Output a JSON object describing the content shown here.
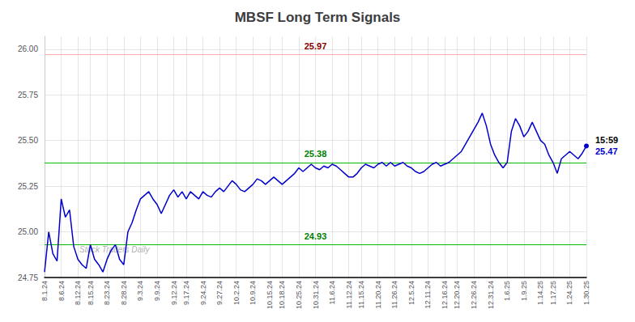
{
  "chart_data": {
    "type": "line",
    "title": "MBSF Long Term Signals",
    "color": "#0000cc",
    "grid": true,
    "ylim": [
      24.75,
      26.07
    ],
    "yticks": [
      24.75,
      {
        "value": 25.0,
        "label": "25.00"
      },
      25.25,
      {
        "value": 25.5,
        "label": "25.50"
      },
      25.75,
      {
        "value": 26.0,
        "label": "26.00"
      }
    ],
    "hlines": [
      {
        "y": 25.97,
        "label": "25.97",
        "color": "#ffaaaa",
        "text_color": "darkred"
      },
      {
        "y": 25.38,
        "label": "25.38",
        "color": "#00bb00",
        "text_color": "green"
      },
      {
        "y": 24.93,
        "label": "24.93",
        "color": "#00bb00",
        "text_color": "green"
      }
    ],
    "end_time": "15:59",
    "end_price": "25.47",
    "watermark": "Stock Traders Daily",
    "categories": [
      "8.1.24",
      null,
      null,
      null,
      "8.6.24",
      null,
      null,
      null,
      "8.12.24",
      null,
      null,
      "8.15.24",
      null,
      null,
      null,
      "8.23.24",
      null,
      null,
      null,
      "8.28.24",
      null,
      null,
      null,
      "9.3.24",
      null,
      null,
      null,
      "9.9.24",
      null,
      null,
      null,
      "9.12.24",
      null,
      null,
      "9.17.24",
      null,
      null,
      null,
      "9.24.24",
      null,
      null,
      null,
      "9.27.24",
      null,
      null,
      null,
      "10.2.24",
      null,
      null,
      null,
      "10.9.24",
      null,
      null,
      null,
      "10.15.24",
      null,
      null,
      "10.18.24",
      null,
      null,
      null,
      "10.25.24",
      null,
      null,
      null,
      "10.31.24",
      null,
      null,
      null,
      "11.6.24",
      null,
      null,
      null,
      "11.12.24",
      null,
      null,
      "11.15.24",
      null,
      null,
      null,
      "11.20.24",
      null,
      null,
      null,
      "11.26.24",
      null,
      null,
      null,
      "12.5.24",
      null,
      null,
      null,
      "12.11.24",
      null,
      null,
      null,
      "12.16.24",
      null,
      null,
      "12.20.24",
      null,
      null,
      null,
      "12.26.24",
      null,
      null,
      null,
      "12.31.24",
      null,
      null,
      null,
      "1.6.25",
      null,
      null,
      null,
      "1.9.25",
      null,
      null,
      null,
      "1.14.25",
      null,
      null,
      "1.17.25",
      null,
      null,
      null,
      "1.24.25",
      null,
      null,
      null,
      "1.30.25"
    ],
    "values": [
      24.78,
      25.0,
      24.88,
      24.84,
      25.18,
      25.08,
      25.12,
      24.92,
      24.85,
      24.82,
      24.8,
      24.93,
      24.85,
      24.82,
      24.78,
      24.85,
      24.9,
      24.93,
      24.85,
      24.82,
      25.0,
      25.05,
      25.12,
      25.18,
      25.2,
      25.22,
      25.18,
      25.15,
      25.1,
      25.15,
      25.2,
      25.23,
      25.19,
      25.22,
      25.18,
      25.22,
      25.2,
      25.18,
      25.22,
      25.2,
      25.19,
      25.22,
      25.24,
      25.22,
      25.25,
      25.28,
      25.26,
      25.23,
      25.22,
      25.24,
      25.26,
      25.29,
      25.28,
      25.26,
      25.28,
      25.3,
      25.28,
      25.26,
      25.28,
      25.3,
      25.32,
      25.35,
      25.33,
      25.35,
      25.37,
      25.35,
      25.34,
      25.36,
      25.35,
      25.37,
      25.36,
      25.34,
      25.32,
      25.3,
      25.3,
      25.32,
      25.35,
      25.37,
      25.36,
      25.35,
      25.37,
      25.38,
      25.36,
      25.38,
      25.36,
      25.37,
      25.38,
      25.36,
      25.35,
      25.33,
      25.32,
      25.33,
      25.35,
      25.37,
      25.38,
      25.36,
      25.37,
      25.38,
      25.4,
      25.42,
      25.44,
      25.48,
      25.52,
      25.56,
      25.6,
      25.65,
      25.58,
      25.48,
      25.42,
      25.38,
      25.35,
      25.38,
      25.55,
      25.62,
      25.58,
      25.52,
      25.55,
      25.6,
      25.55,
      25.5,
      25.48,
      25.42,
      25.38,
      25.32,
      25.4,
      25.42,
      25.44,
      25.42,
      25.4,
      25.43,
      25.47
    ]
  }
}
